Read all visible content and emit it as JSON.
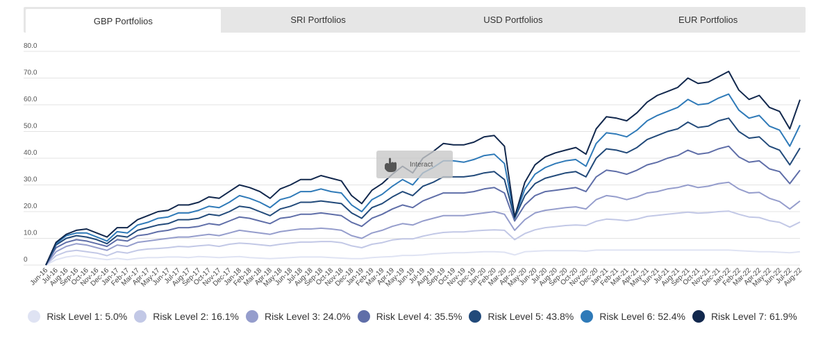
{
  "tabs": [
    {
      "label": "GBP Portfolios",
      "active": true
    },
    {
      "label": "SRI Portfolios",
      "active": false
    },
    {
      "label": "USD Portfolios",
      "active": false
    },
    {
      "label": "EUR Portfolios",
      "active": false
    }
  ],
  "interact_label": "Interact",
  "chart_data": {
    "type": "line",
    "title": "",
    "xlabel": "",
    "ylabel": "",
    "ylim": [
      0,
      80
    ],
    "yticks": [
      "0",
      "10.0",
      "20.0",
      "30.0",
      "40.0",
      "50.0",
      "60.0",
      "70.0",
      "80.0"
    ],
    "grid": true,
    "legend_position": "bottom",
    "x": [
      "Jun-16",
      "Jul-16",
      "Aug-16",
      "Sep-16",
      "Oct-16",
      "Nov-16",
      "Dec-16",
      "Jan-17",
      "Feb-17",
      "Mar-17",
      "Apr-17",
      "May-17",
      "Jun-17",
      "Jul-17",
      "Aug-17",
      "Sep-17",
      "Oct-17",
      "Nov-17",
      "Dec-17",
      "Jan-18",
      "Feb-18",
      "Mar-18",
      "Apr-18",
      "May-18",
      "Jun-18",
      "Jul-18",
      "Aug-18",
      "Sep-18",
      "Oct-18",
      "Nov-18",
      "Dec-18",
      "Jan-19",
      "Feb-19",
      "Mar-19",
      "Apr-19",
      "May-19",
      "Jun-19",
      "Jul-19",
      "Aug-19",
      "Sep-19",
      "Oct-19",
      "Nov-19",
      "Dec-19",
      "Jan-20",
      "Feb-20",
      "Mar-20",
      "Apr-20",
      "May-20",
      "Jun-20",
      "Jul-20",
      "Aug-20",
      "Sep-20",
      "Oct-20",
      "Nov-20",
      "Dec-20",
      "Jan-21",
      "Feb-21",
      "Mar-21",
      "Apr-21",
      "May-21",
      "Jun-21",
      "Jul-21",
      "Aug-21",
      "Sep-21",
      "Oct-21",
      "Nov-21",
      "Dec-21",
      "Jan-22",
      "Feb-22",
      "Mar-22",
      "Apr-22",
      "May-22",
      "Jun-22",
      "Jul-22",
      "Aug-22"
    ],
    "series": [
      {
        "name": "Risk Level 1: 5.0%",
        "color": "#dfe3f3",
        "values": [
          0,
          2.0,
          3.0,
          3.5,
          3.0,
          2.5,
          2.0,
          2.5,
          2.0,
          2.5,
          2.8,
          2.8,
          3.0,
          3.0,
          2.8,
          3.2,
          3.0,
          2.8,
          3.0,
          3.2,
          2.8,
          2.6,
          2.4,
          2.6,
          2.8,
          3.0,
          3.0,
          3.0,
          2.8,
          2.6,
          2.4,
          2.4,
          2.8,
          3.0,
          3.2,
          3.6,
          3.6,
          3.8,
          4.2,
          4.4,
          4.6,
          4.6,
          4.8,
          5.0,
          5.0,
          4.8,
          3.8,
          5.0,
          5.2,
          5.4,
          5.4,
          5.4,
          5.4,
          5.2,
          5.6,
          5.6,
          5.6,
          5.6,
          5.6,
          5.6,
          5.6,
          5.6,
          5.6,
          5.6,
          5.6,
          5.6,
          5.6,
          5.6,
          5.4,
          5.2,
          5.0,
          5.0,
          4.8,
          4.6,
          5.0
        ]
      },
      {
        "name": "Risk Level 2: 16.1%",
        "color": "#c2c8e6",
        "values": [
          0,
          3.5,
          5.0,
          5.5,
          5.0,
          4.5,
          3.5,
          5.0,
          4.5,
          5.5,
          6.0,
          6.2,
          6.5,
          7.0,
          6.8,
          7.2,
          7.5,
          7.0,
          7.8,
          8.2,
          8.0,
          7.6,
          7.2,
          7.8,
          8.2,
          8.6,
          8.6,
          8.8,
          8.8,
          8.4,
          7.2,
          6.5,
          7.8,
          8.4,
          9.4,
          9.8,
          9.8,
          10.8,
          11.6,
          12.2,
          12.4,
          12.4,
          12.8,
          13.0,
          13.2,
          13.0,
          9.5,
          11.8,
          13.2,
          14.0,
          14.4,
          14.8,
          15.0,
          14.8,
          16.4,
          17.2,
          17.0,
          16.6,
          17.2,
          18.2,
          18.6,
          19.0,
          19.4,
          19.8,
          19.4,
          19.6,
          20.0,
          20.2,
          19.0,
          18.0,
          17.8,
          16.6,
          16.0,
          14.2,
          16.1
        ]
      },
      {
        "name": "Risk Level 3: 24.0%",
        "color": "#959dcc",
        "values": [
          0,
          5.0,
          7.0,
          8.0,
          7.5,
          6.5,
          5.5,
          7.5,
          7.0,
          8.5,
          9.0,
          9.5,
          10.0,
          10.5,
          10.5,
          11.0,
          11.5,
          11.0,
          12.0,
          13.0,
          12.5,
          12.0,
          11.5,
          12.5,
          13.0,
          13.5,
          13.5,
          13.8,
          13.5,
          13.0,
          11.0,
          10.0,
          12.0,
          13.0,
          14.5,
          15.5,
          15.0,
          16.5,
          17.5,
          18.5,
          18.5,
          18.5,
          19.0,
          19.5,
          20.0,
          19.0,
          13.0,
          17.0,
          19.5,
          20.5,
          21.0,
          21.5,
          21.8,
          21.0,
          24.5,
          26.0,
          25.5,
          24.5,
          25.5,
          27.0,
          27.5,
          28.5,
          29.0,
          30.0,
          29.0,
          29.5,
          30.5,
          31.0,
          28.5,
          27.0,
          27.2,
          25.0,
          23.8,
          21.0,
          24.0
        ]
      },
      {
        "name": "Risk Level 4: 35.5%",
        "color": "#5f6ea8",
        "values": [
          0,
          6.5,
          8.5,
          9.5,
          9.0,
          8.0,
          7.0,
          9.5,
          9.0,
          11.0,
          11.5,
          12.5,
          13.0,
          14.0,
          14.0,
          14.5,
          15.5,
          15.0,
          16.5,
          18.0,
          17.5,
          16.5,
          15.5,
          17.5,
          18.0,
          19.0,
          19.0,
          19.5,
          19.0,
          18.5,
          16.0,
          14.5,
          17.5,
          19.0,
          21.0,
          22.5,
          21.5,
          24.0,
          25.5,
          27.0,
          27.0,
          27.0,
          27.5,
          28.5,
          29.0,
          27.0,
          16.5,
          22.5,
          26.0,
          27.5,
          28.0,
          28.5,
          29.0,
          27.5,
          33.0,
          35.5,
          35.0,
          34.0,
          35.5,
          37.5,
          38.5,
          40.0,
          41.0,
          43.0,
          41.5,
          42.0,
          43.5,
          44.5,
          40.5,
          38.5,
          39.0,
          36.0,
          35.0,
          30.5,
          35.5
        ]
      },
      {
        "name": "Risk Level 5: 43.8%",
        "color": "#224a7a",
        "values": [
          0,
          7.5,
          10.0,
          11.0,
          10.5,
          9.5,
          8.0,
          11.0,
          10.5,
          13.0,
          14.0,
          15.0,
          15.5,
          17.0,
          17.0,
          17.5,
          19.0,
          18.5,
          20.0,
          22.0,
          21.5,
          20.0,
          18.5,
          21.0,
          22.0,
          23.5,
          23.5,
          24.0,
          23.5,
          23.0,
          19.5,
          17.5,
          21.5,
          23.0,
          25.5,
          27.5,
          26.0,
          29.5,
          31.0,
          33.0,
          33.0,
          33.0,
          33.5,
          34.5,
          35.0,
          32.0,
          17.5,
          26.0,
          30.5,
          32.5,
          33.5,
          34.5,
          35.0,
          33.0,
          40.0,
          43.5,
          43.0,
          42.0,
          44.0,
          47.0,
          48.5,
          50.0,
          51.0,
          53.5,
          51.5,
          52.0,
          54.0,
          55.0,
          50.0,
          47.5,
          48.0,
          44.5,
          43.0,
          37.5,
          43.8
        ]
      },
      {
        "name": "Risk Level 6: 52.4%",
        "color": "#2f7ab8",
        "values": [
          0,
          8.0,
          11.0,
          12.0,
          12.0,
          10.5,
          9.0,
          12.5,
          12.0,
          15.0,
          16.0,
          17.5,
          18.0,
          19.5,
          19.5,
          20.5,
          22.0,
          21.5,
          23.5,
          26.0,
          25.0,
          23.5,
          21.5,
          24.5,
          25.5,
          27.5,
          27.5,
          28.5,
          27.5,
          27.0,
          22.5,
          20.0,
          24.5,
          26.5,
          29.5,
          32.0,
          30.0,
          34.5,
          36.5,
          39.0,
          39.0,
          38.5,
          39.5,
          41.0,
          41.5,
          38.0,
          17.8,
          28.5,
          34.0,
          36.5,
          38.0,
          39.0,
          39.5,
          37.0,
          45.5,
          49.5,
          49.0,
          48.0,
          50.5,
          54.0,
          56.0,
          57.5,
          59.0,
          62.0,
          60.0,
          60.5,
          62.5,
          64.0,
          58.0,
          55.0,
          56.0,
          52.0,
          50.5,
          44.5,
          52.4
        ]
      },
      {
        "name": "Risk Level 7: 61.9%",
        "color": "#12284d",
        "values": [
          0,
          8.5,
          11.5,
          13.0,
          13.5,
          12.0,
          10.5,
          14.0,
          14.0,
          17.0,
          18.5,
          20.0,
          20.5,
          22.5,
          22.5,
          23.5,
          25.5,
          25.0,
          27.5,
          30.0,
          29.0,
          27.5,
          25.0,
          28.5,
          30.0,
          32.0,
          32.0,
          33.5,
          32.5,
          31.5,
          26.0,
          23.0,
          28.0,
          30.5,
          34.0,
          37.0,
          34.5,
          40.0,
          42.5,
          45.5,
          45.0,
          45.0,
          46.0,
          48.0,
          48.5,
          44.5,
          18.0,
          31.0,
          37.5,
          40.5,
          42.0,
          43.0,
          44.0,
          41.5,
          51.0,
          55.5,
          55.0,
          54.0,
          57.0,
          61.0,
          63.5,
          65.0,
          66.5,
          70.0,
          68.0,
          68.5,
          70.5,
          72.5,
          65.5,
          62.0,
          63.5,
          59.0,
          57.5,
          51.0,
          61.9
        ]
      }
    ]
  }
}
